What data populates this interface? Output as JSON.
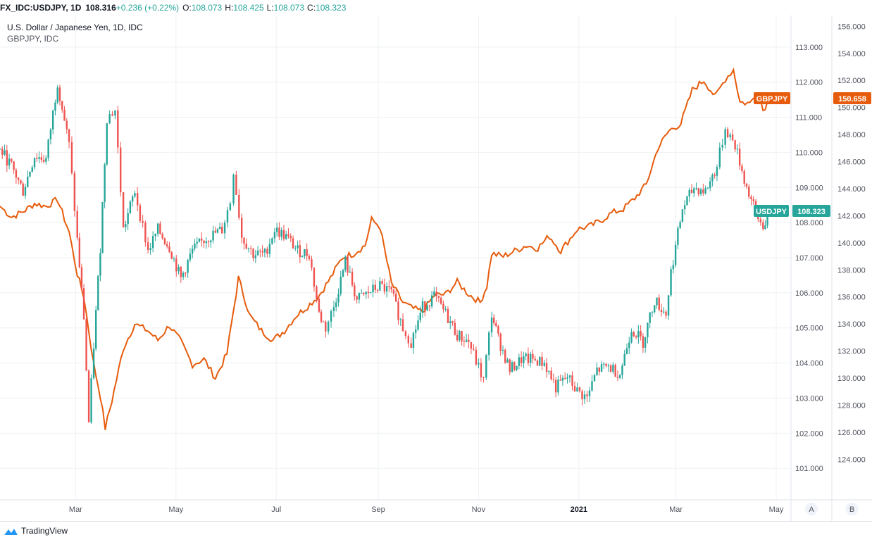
{
  "header": {
    "symbol": "FX_IDC:USDJPY, 1D",
    "price": "108.316",
    "change": "+0.236 (+0.22%)",
    "open_label": "O:",
    "open": "108.073",
    "high_label": "H:",
    "high": "108.425",
    "low_label": "L:",
    "low": "108.073",
    "close_label": "C:",
    "close": "108.323"
  },
  "branding": {
    "logo_text": "TradingView",
    "logo_icon": "tradingview-cloud-icon"
  },
  "colors": {
    "up": "#26a69a",
    "down": "#ef5350",
    "overlay": "#e65c0c",
    "grid": "#eef0f3",
    "axis_text": "#50535e",
    "border": "#e0e3eb"
  },
  "chart_data": {
    "type": "line",
    "title": "U.S. Dollar / Japanese Yen, 1D, IDC",
    "subtitle": "GBPJPY, IDC",
    "x_ticks": [
      "Mar",
      "May",
      "Jul",
      "Sep",
      "Nov",
      "2021",
      "Mar",
      "May"
    ],
    "x_range": [
      "2020-01-15",
      "2021-05-10"
    ],
    "right_scale_a": {
      "name": "USDJPY",
      "ticks": [
        "101.000",
        "102.000",
        "103.000",
        "104.000",
        "105.000",
        "106.000",
        "107.000",
        "108.000",
        "109.000",
        "110.000",
        "111.000",
        "112.000",
        "113.000"
      ],
      "range": [
        100.1,
        113.9
      ],
      "scale_label": "A"
    },
    "right_scale_b": {
      "name": "GBPJPY",
      "ticks": [
        "124.000",
        "126.000",
        "128.000",
        "130.000",
        "132.000",
        "134.000",
        "136.000",
        "138.000",
        "140.000",
        "142.000",
        "144.000",
        "146.000",
        "148.000",
        "150.000",
        "152.000",
        "154.000",
        "156.000"
      ],
      "range": [
        121.0,
        156.8
      ],
      "scale_label": "B"
    },
    "last_value_labels": [
      {
        "series": "GBPJPY",
        "name_label": "GBPJPY",
        "value_label": "150.658",
        "value": 150.658
      },
      {
        "series": "USDJPY",
        "name_label": "USDJPY",
        "value_label": "108.323",
        "value": 108.323
      }
    ],
    "series": [
      {
        "name": "USDJPY",
        "kind": "candlestick",
        "close_points": [
          [
            "2020-01-15",
            110.1
          ],
          [
            "2020-01-22",
            109.6
          ],
          [
            "2020-01-29",
            108.9
          ],
          [
            "2020-02-05",
            109.9
          ],
          [
            "2020-02-12",
            109.8
          ],
          [
            "2020-02-19",
            112.0
          ],
          [
            "2020-02-26",
            110.2
          ],
          [
            "2020-03-02",
            107.5
          ],
          [
            "2020-03-06",
            105.3
          ],
          [
            "2020-03-09",
            102.3
          ],
          [
            "2020-03-12",
            104.5
          ],
          [
            "2020-03-16",
            107.3
          ],
          [
            "2020-03-20",
            111.0
          ],
          [
            "2020-03-25",
            111.2
          ],
          [
            "2020-03-30",
            107.8
          ],
          [
            "2020-04-06",
            108.9
          ],
          [
            "2020-04-14",
            107.2
          ],
          [
            "2020-04-20",
            107.8
          ],
          [
            "2020-04-27",
            107.3
          ],
          [
            "2020-05-04",
            106.4
          ],
          [
            "2020-05-11",
            107.2
          ],
          [
            "2020-05-18",
            107.5
          ],
          [
            "2020-05-25",
            107.7
          ],
          [
            "2020-05-29",
            107.8
          ],
          [
            "2020-06-03",
            108.6
          ],
          [
            "2020-06-05",
            109.5
          ],
          [
            "2020-06-10",
            107.6
          ],
          [
            "2020-06-17",
            107.1
          ],
          [
            "2020-06-24",
            107.1
          ],
          [
            "2020-06-30",
            107.8
          ],
          [
            "2020-07-07",
            107.6
          ],
          [
            "2020-07-14",
            107.2
          ],
          [
            "2020-07-21",
            107.1
          ],
          [
            "2020-07-27",
            105.4
          ],
          [
            "2020-07-31",
            105.0
          ],
          [
            "2020-08-05",
            105.6
          ],
          [
            "2020-08-12",
            106.9
          ],
          [
            "2020-08-19",
            105.8
          ],
          [
            "2020-08-26",
            106.0
          ],
          [
            "2020-09-02",
            106.2
          ],
          [
            "2020-09-09",
            106.0
          ],
          [
            "2020-09-16",
            105.0
          ],
          [
            "2020-09-21",
            104.6
          ],
          [
            "2020-09-28",
            105.6
          ],
          [
            "2020-10-05",
            105.9
          ],
          [
            "2020-10-12",
            105.4
          ],
          [
            "2020-10-19",
            104.8
          ],
          [
            "2020-10-26",
            104.6
          ],
          [
            "2020-11-04",
            103.5
          ],
          [
            "2020-11-09",
            105.4
          ],
          [
            "2020-11-13",
            104.7
          ],
          [
            "2020-11-20",
            103.8
          ],
          [
            "2020-11-27",
            104.1
          ],
          [
            "2020-12-04",
            104.1
          ],
          [
            "2020-12-11",
            104.0
          ],
          [
            "2020-12-18",
            103.3
          ],
          [
            "2020-12-25",
            103.6
          ],
          [
            "2020-12-31",
            103.2
          ],
          [
            "2021-01-06",
            103.0
          ],
          [
            "2021-01-12",
            103.8
          ],
          [
            "2021-01-19",
            103.9
          ],
          [
            "2021-01-26",
            103.7
          ],
          [
            "2021-02-02",
            105.0
          ],
          [
            "2021-02-09",
            104.6
          ],
          [
            "2021-02-16",
            105.8
          ],
          [
            "2021-02-23",
            105.4
          ],
          [
            "2021-02-26",
            106.6
          ],
          [
            "2021-03-05",
            108.4
          ],
          [
            "2021-03-12",
            109.0
          ],
          [
            "2021-03-19",
            108.9
          ],
          [
            "2021-03-26",
            109.6
          ],
          [
            "2021-03-31",
            110.7
          ],
          [
            "2021-04-06",
            110.2
          ],
          [
            "2021-04-13",
            109.0
          ],
          [
            "2021-04-20",
            108.1
          ],
          [
            "2021-04-23",
            107.9
          ],
          [
            "2021-04-27",
            108.323
          ]
        ]
      },
      {
        "name": "GBPJPY",
        "kind": "line",
        "points": [
          [
            "2020-01-15",
            142.7
          ],
          [
            "2020-01-22",
            141.9
          ],
          [
            "2020-01-29",
            142.3
          ],
          [
            "2020-02-05",
            142.9
          ],
          [
            "2020-02-12",
            142.7
          ],
          [
            "2020-02-19",
            143.2
          ],
          [
            "2020-02-26",
            140.8
          ],
          [
            "2020-03-02",
            137.7
          ],
          [
            "2020-03-06",
            136.0
          ],
          [
            "2020-03-09",
            133.5
          ],
          [
            "2020-03-12",
            131.0
          ],
          [
            "2020-03-16",
            128.7
          ],
          [
            "2020-03-19",
            126.3
          ],
          [
            "2020-03-23",
            128.3
          ],
          [
            "2020-03-30",
            132.2
          ],
          [
            "2020-04-06",
            134.0
          ],
          [
            "2020-04-14",
            133.5
          ],
          [
            "2020-04-20",
            132.8
          ],
          [
            "2020-04-27",
            133.9
          ],
          [
            "2020-05-04",
            132.7
          ],
          [
            "2020-05-11",
            131.0
          ],
          [
            "2020-05-18",
            131.4
          ],
          [
            "2020-05-25",
            130.0
          ],
          [
            "2020-06-01",
            131.8
          ],
          [
            "2020-06-08",
            137.4
          ],
          [
            "2020-06-15",
            134.6
          ],
          [
            "2020-06-22",
            133.5
          ],
          [
            "2020-06-29",
            132.8
          ],
          [
            "2020-07-06",
            133.5
          ],
          [
            "2020-07-13",
            134.6
          ],
          [
            "2020-07-20",
            135.3
          ],
          [
            "2020-07-27",
            136.1
          ],
          [
            "2020-08-03",
            137.4
          ],
          [
            "2020-08-10",
            138.9
          ],
          [
            "2020-08-17",
            139.2
          ],
          [
            "2020-08-24",
            139.8
          ],
          [
            "2020-08-28",
            141.7
          ],
          [
            "2020-09-02",
            141.2
          ],
          [
            "2020-09-09",
            137.0
          ],
          [
            "2020-09-16",
            135.6
          ],
          [
            "2020-09-21",
            135.2
          ],
          [
            "2020-09-28",
            134.9
          ],
          [
            "2020-10-05",
            136.1
          ],
          [
            "2020-10-12",
            136.2
          ],
          [
            "2020-10-19",
            137.1
          ],
          [
            "2020-10-26",
            136.2
          ],
          [
            "2020-11-02",
            135.6
          ],
          [
            "2020-11-06",
            136.8
          ],
          [
            "2020-11-09",
            139.2
          ],
          [
            "2020-11-16",
            139.0
          ],
          [
            "2020-11-23",
            139.4
          ],
          [
            "2020-11-30",
            139.8
          ],
          [
            "2020-12-07",
            139.6
          ],
          [
            "2020-12-14",
            140.5
          ],
          [
            "2020-12-21",
            139.4
          ],
          [
            "2020-12-31",
            141.0
          ],
          [
            "2021-01-07",
            141.2
          ],
          [
            "2021-01-14",
            141.6
          ],
          [
            "2021-01-21",
            142.2
          ],
          [
            "2021-01-28",
            142.5
          ],
          [
            "2021-02-04",
            143.3
          ],
          [
            "2021-02-11",
            144.3
          ],
          [
            "2021-02-18",
            147.0
          ],
          [
            "2021-02-25",
            148.3
          ],
          [
            "2021-03-04",
            148.8
          ],
          [
            "2021-03-11",
            151.3
          ],
          [
            "2021-03-18",
            152.0
          ],
          [
            "2021-03-25",
            150.8
          ],
          [
            "2021-03-31",
            152.1
          ],
          [
            "2021-04-05",
            152.8
          ],
          [
            "2021-04-09",
            150.4
          ],
          [
            "2021-04-15",
            150.3
          ],
          [
            "2021-04-20",
            151.3
          ],
          [
            "2021-04-23",
            149.8
          ],
          [
            "2021-04-27",
            150.658
          ]
        ]
      }
    ]
  }
}
